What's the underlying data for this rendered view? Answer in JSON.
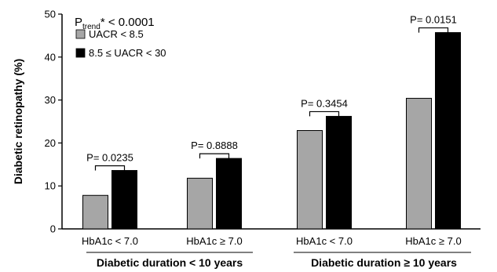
{
  "colors": {
    "series1": "#a6a6a6",
    "series2": "#000000",
    "axis": "#000000",
    "background": "#ffffff"
  },
  "chart_data": {
    "type": "bar",
    "ylabel": "Diabetic retinopathy (%)",
    "xlabel": "",
    "ylim": [
      0,
      50
    ],
    "yticks": [
      "0",
      "10",
      "20",
      "30",
      "40",
      "50"
    ],
    "grid": false,
    "legend_position": "top-left",
    "trend": {
      "prefix": "P",
      "subscript": "trend",
      "suffix": "* < 0.0001"
    },
    "categories": [
      "HbA1c < 7.0",
      "HbA1c ≥ 7.0",
      "HbA1c < 7.0",
      "HbA1c ≥ 7.0"
    ],
    "groups": [
      {
        "label": "Diabetic duration < 10 years",
        "categories": [
          0,
          1
        ]
      },
      {
        "label": "Diabetic duration ≥ 10 years",
        "categories": [
          2,
          3
        ]
      }
    ],
    "series": [
      {
        "name": "UACR < 8.5",
        "color": "#a6a6a6",
        "values": [
          7.8,
          11.8,
          22.9,
          30.4
        ]
      },
      {
        "name": "8.5 ≤ UACR < 30",
        "color": "#000000",
        "values": [
          13.6,
          16.4,
          26.2,
          45.7
        ]
      }
    ],
    "pvalues": [
      "P= 0.0235",
      "P= 0.8888",
      "P= 0.3454",
      "P= 0.0151"
    ]
  }
}
